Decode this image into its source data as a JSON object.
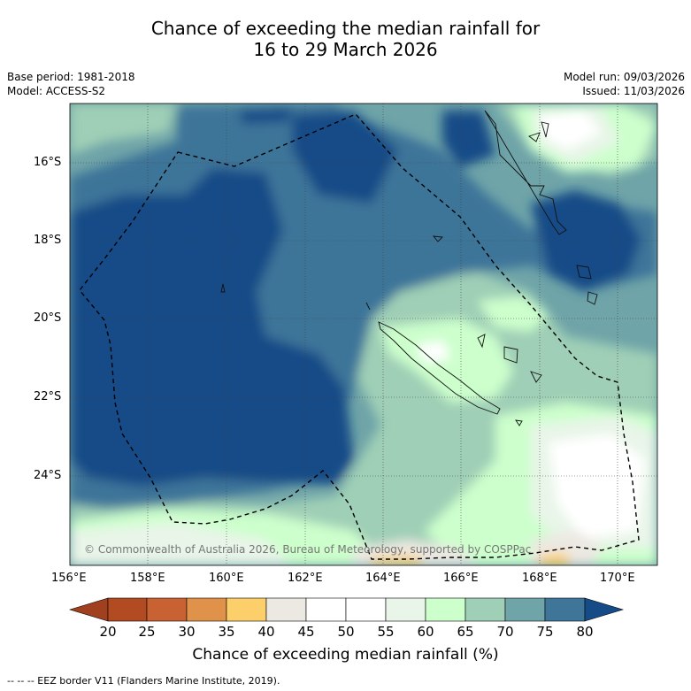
{
  "title_line1": "Chance of exceeding the median rainfall for",
  "title_line2": "16 to 29 March 2026",
  "base_period": "Base period: 1981-2018",
  "model": "Model: ACCESS-S2",
  "model_run": "Model run: 09/03/2026",
  "issued": "Issued: 11/03/2026",
  "copyright": "© Commonwealth of Australia 2026, Bureau of Meteorology, supported by COSPPac",
  "lat_labels": [
    "16°S",
    "18°S",
    "20°S",
    "22°S",
    "24°S"
  ],
  "lon_labels": [
    "156°E",
    "158°E",
    "160°E",
    "162°E",
    "164°E",
    "166°E",
    "168°E",
    "170°E"
  ],
  "colorbar": {
    "ticks": [
      "20",
      "25",
      "30",
      "35",
      "40",
      "45",
      "50",
      "55",
      "60",
      "65",
      "70",
      "75",
      "80"
    ],
    "colors": [
      "#a0401f",
      "#b24a22",
      "#c96232",
      "#e0914a",
      "#fdcf6a",
      "#ece8e2",
      "#ffffff",
      "#ffffff",
      "#e8f5e8",
      "#ccffcc",
      "#9fcfb6",
      "#6fa4a8",
      "#3e7599",
      "#154c87"
    ],
    "label": "Chance of exceeding median rainfall (%)"
  },
  "footnote": "--  --  -- EEZ border V11 (Flanders Marine Institute, 2019)."
}
